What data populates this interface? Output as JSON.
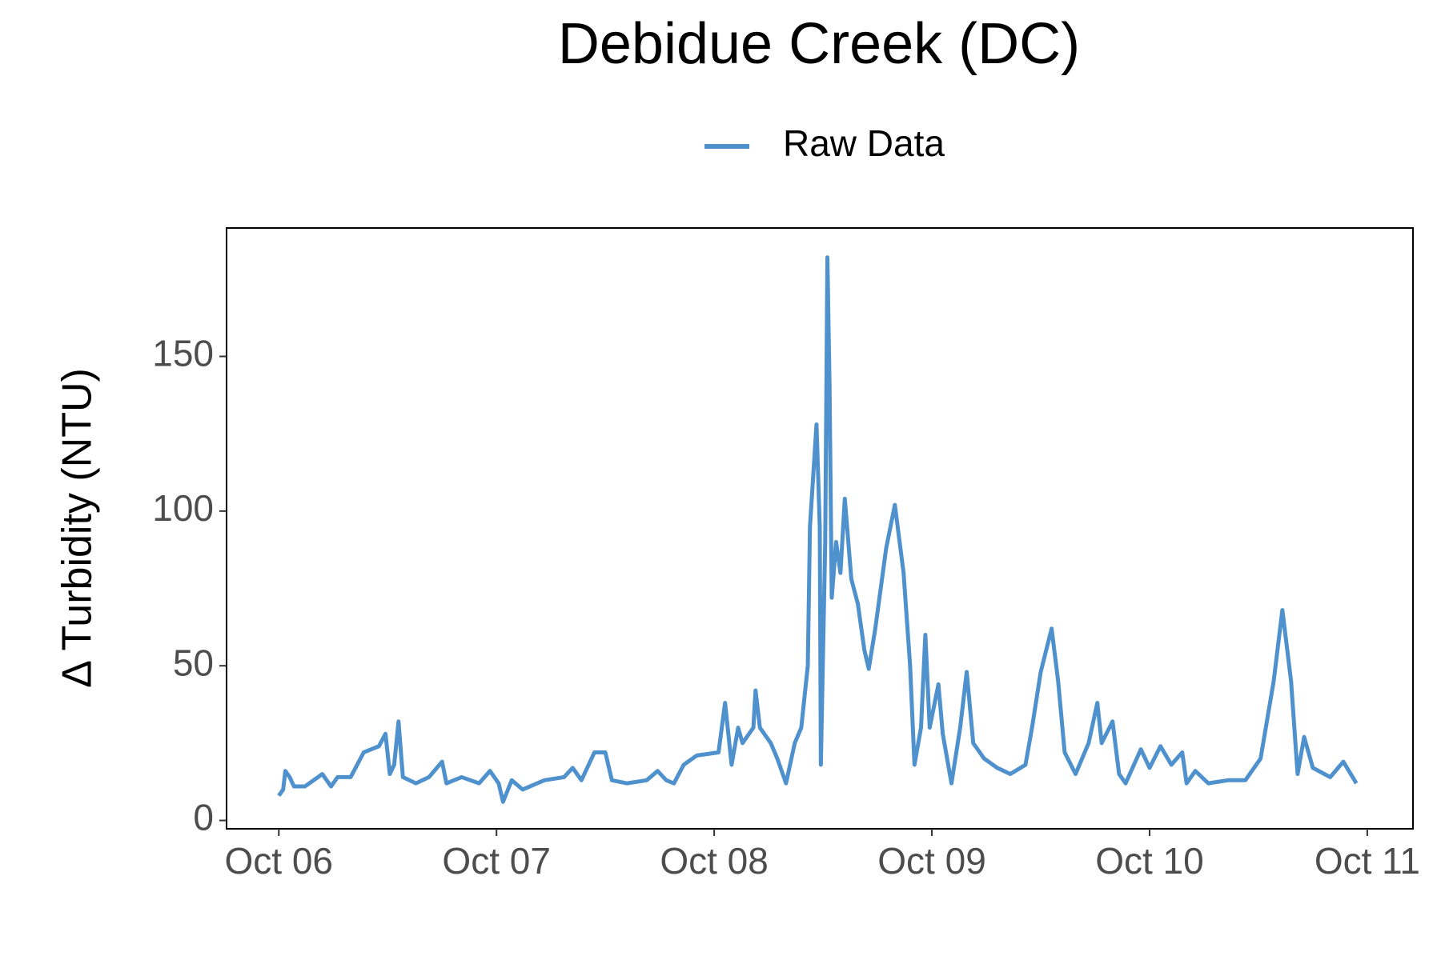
{
  "chart_data": {
    "type": "line",
    "title": "Debidue Creek (DC)",
    "y_label": "Δ Turbidity (NTU)",
    "legend": "top",
    "grid": false,
    "xlim": [
      5.76,
      11.21
    ],
    "ylim": [
      -2.7,
      191.5
    ],
    "xticks": [
      {
        "value": 6,
        "label": "Oct 06"
      },
      {
        "value": 7,
        "label": "Oct 07"
      },
      {
        "value": 8,
        "label": "Oct 08"
      },
      {
        "value": 9,
        "label": "Oct 09"
      },
      {
        "value": 10,
        "label": "Oct 10"
      },
      {
        "value": 11,
        "label": "Oct 11"
      }
    ],
    "yticks": [
      0,
      50,
      100,
      150
    ],
    "x": [
      6.0,
      6.02,
      6.03,
      6.05,
      6.07,
      6.12,
      6.2,
      6.24,
      6.27,
      6.33,
      6.39,
      6.46,
      6.49,
      6.51,
      6.53,
      6.55,
      6.57,
      6.63,
      6.69,
      6.75,
      6.77,
      6.84,
      6.92,
      6.97,
      7.01,
      7.03,
      7.07,
      7.12,
      7.22,
      7.31,
      7.35,
      7.39,
      7.45,
      7.5,
      7.53,
      7.6,
      7.69,
      7.74,
      7.78,
      7.815,
      7.86,
      7.92,
      8.02,
      8.05,
      8.08,
      8.11,
      8.13,
      8.18,
      8.19,
      8.21,
      8.26,
      8.29,
      8.33,
      8.37,
      8.4,
      8.43,
      8.44,
      8.47,
      8.485,
      8.49,
      8.51,
      8.52,
      8.53,
      8.54,
      8.56,
      8.58,
      8.6,
      8.63,
      8.66,
      8.69,
      8.71,
      8.74,
      8.79,
      8.83,
      8.87,
      8.9,
      8.92,
      8.95,
      8.97,
      8.99,
      9.03,
      9.05,
      9.09,
      9.13,
      9.16,
      9.19,
      9.24,
      9.3,
      9.36,
      9.43,
      9.46,
      9.5,
      9.55,
      9.58,
      9.61,
      9.66,
      9.72,
      9.76,
      9.78,
      9.83,
      9.86,
      9.89,
      9.96,
      10.0,
      10.05,
      10.1,
      10.15,
      10.17,
      10.21,
      10.27,
      10.36,
      10.44,
      10.51,
      10.57,
      10.61,
      10.65,
      10.68,
      10.71,
      10.75,
      10.83,
      10.89,
      10.95
    ],
    "series": [
      {
        "name": "Raw Data",
        "color": "#4f91cd",
        "values": [
          8,
          10,
          16,
          14,
          11,
          11,
          15,
          11,
          14,
          14,
          22,
          24,
          28,
          15,
          18,
          32,
          14,
          12,
          14,
          19,
          12,
          14,
          12,
          16,
          12,
          6,
          13,
          10,
          13,
          14,
          17,
          13,
          22,
          22,
          13,
          12,
          13,
          16,
          13,
          12,
          18,
          21,
          22,
          38,
          18,
          30,
          25,
          30,
          42,
          30,
          25,
          20,
          12,
          25,
          30,
          50,
          95,
          128,
          95,
          18,
          90,
          182,
          140,
          72,
          90,
          80,
          104,
          78,
          70,
          55,
          49,
          62,
          88,
          102,
          80,
          50,
          18,
          30,
          60,
          30,
          44,
          28,
          12,
          30,
          48,
          25,
          20,
          17,
          15,
          18,
          30,
          48,
          62,
          45,
          22,
          15,
          25,
          38,
          25,
          32,
          15,
          12,
          23,
          17,
          24,
          18,
          22,
          12,
          16,
          12,
          13,
          13,
          20,
          45,
          68,
          45,
          15,
          27,
          17,
          14,
          19,
          12
        ]
      }
    ]
  }
}
